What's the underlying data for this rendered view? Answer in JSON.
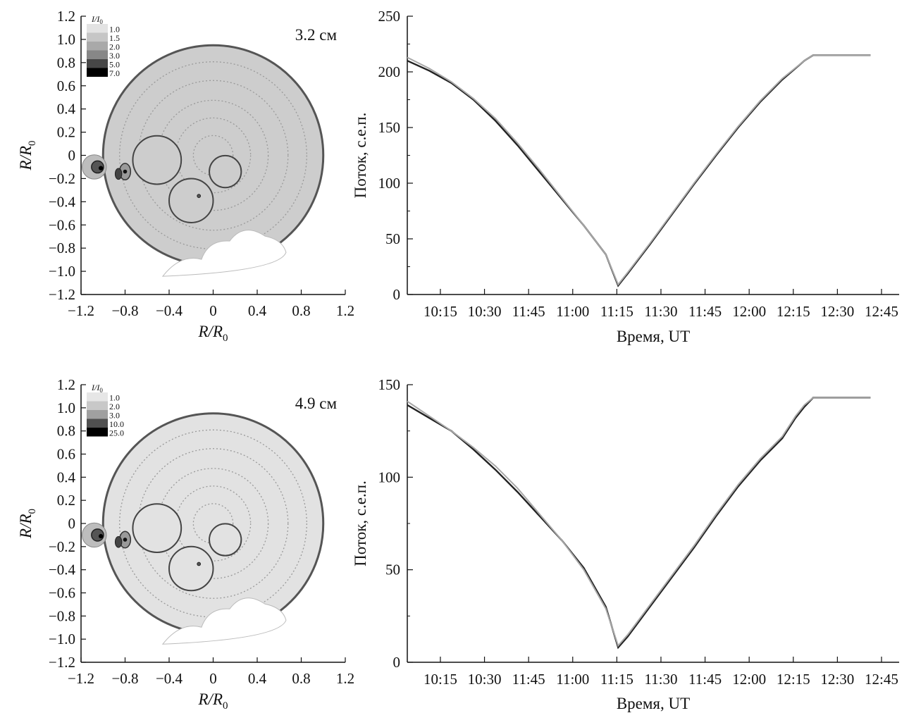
{
  "chart_data": [
    {
      "id": "map-top",
      "type": "contour-map",
      "label": "3.2 см",
      "xlabel": "R/R",
      "xlabel_sub": "0",
      "ylabel": "R/R",
      "ylabel_sub": "0",
      "xlim": [
        -1.2,
        1.2
      ],
      "ylim": [
        -1.2,
        1.2
      ],
      "x_ticks": [
        "−1.2",
        "−0.8",
        "−0.4",
        "0",
        "0.4",
        "0.8",
        "1.2"
      ],
      "y_ticks": [
        "1.2",
        "1.0",
        "0.8",
        "0.6",
        "0.4",
        "0.2",
        "0",
        "−0.2",
        "−0.4",
        "−0.6",
        "−0.8",
        "−1.0",
        "−1.2"
      ],
      "legend_title": "I/I",
      "legend_title_sub": "0",
      "legend_levels": [
        "1.0",
        "1.5",
        "2.0",
        "3.0",
        "5.0",
        "7.0"
      ],
      "legend_colors": [
        "#e3e3e3",
        "#c6c6c6",
        "#a9a9a9",
        "#878787",
        "#474747",
        "#000000"
      ],
      "disk_fill": "#cdcdcd"
    },
    {
      "id": "flux-top",
      "type": "line",
      "xlabel": "Время, UT",
      "ylabel": "Поток, с.е.п.",
      "ylim": [
        0,
        250
      ],
      "y_ticks": [
        "0",
        "50",
        "100",
        "150",
        "200",
        "250"
      ],
      "x_tick_labels": [
        "10:15",
        "10:30",
        "11:45",
        "11:00",
        "11:15",
        "11:30",
        "11:45",
        "12:00",
        "12:15",
        "12:30",
        "12:45"
      ],
      "series": [
        {
          "color": "#222222",
          "x": [
            0,
            0.5,
            1,
            1.5,
            2,
            2.5,
            3,
            3.5,
            4,
            4.5,
            4.78,
            5,
            5.5,
            6,
            6.5,
            7,
            7.5,
            8,
            8.5,
            9,
            9.2,
            9.5,
            10,
            10.5
          ],
          "y": [
            210,
            201,
            190,
            175,
            156,
            134,
            110,
            86,
            62,
            36,
            8,
            19,
            45,
            72,
            99,
            125,
            150,
            173,
            193,
            210,
            215,
            215,
            215,
            215
          ]
        },
        {
          "color": "#a8a8a8",
          "x": [
            0,
            0.5,
            1,
            1.5,
            2,
            2.5,
            3,
            3.5,
            4,
            4.5,
            4.78,
            5,
            5.5,
            6,
            6.5,
            7,
            7.5,
            8,
            8.5,
            9,
            9.2,
            9.5,
            10,
            10.5
          ],
          "y": [
            213,
            203,
            191,
            176,
            158,
            136,
            112,
            87,
            62,
            36,
            9,
            20,
            46,
            73,
            100,
            126,
            151,
            174,
            194,
            210,
            215,
            215,
            215,
            215
          ]
        }
      ]
    },
    {
      "id": "map-bottom",
      "type": "contour-map",
      "label": "4.9 см",
      "xlabel": "R/R",
      "xlabel_sub": "0",
      "ylabel": "R/R",
      "ylabel_sub": "0",
      "xlim": [
        -1.2,
        1.2
      ],
      "ylim": [
        -1.2,
        1.2
      ],
      "x_ticks": [
        "−1.2",
        "−0.8",
        "−0.4",
        "0",
        "0.4",
        "0.8",
        "1.2"
      ],
      "y_ticks": [
        "1.2",
        "1.0",
        "0.8",
        "0.6",
        "0.4",
        "0.2",
        "0",
        "−0.2",
        "−0.4",
        "−0.6",
        "−0.8",
        "−1.0",
        "−1.2"
      ],
      "legend_title": "I/I",
      "legend_title_sub": "0",
      "legend_levels": [
        "1.0",
        "2.0",
        "3.0",
        "10.0",
        "25.0"
      ],
      "legend_colors": [
        "#e6e6e6",
        "#c8c8c8",
        "#a0a0a0",
        "#505050",
        "#000000"
      ],
      "disk_fill": "#e2e2e2"
    },
    {
      "id": "flux-bottom",
      "type": "line",
      "xlabel": "Время, UT",
      "ylabel": "Поток, с.е.п.",
      "ylim": [
        0,
        150
      ],
      "y_ticks": [
        "0",
        "50",
        "100",
        "150"
      ],
      "x_tick_labels": [
        "10:15",
        "10:30",
        "11:45",
        "11:00",
        "11:15",
        "11:30",
        "11:45",
        "12:00",
        "12:15",
        "12:30",
        "12:45"
      ],
      "series": [
        {
          "color": "#222222",
          "x": [
            0,
            0.5,
            1,
            1.5,
            2,
            2.5,
            3,
            3.5,
            4,
            4.5,
            4.78,
            5,
            5.5,
            6,
            6.5,
            7,
            7.5,
            8,
            8.5,
            8.8,
            9,
            9.2,
            9.5,
            10,
            10.5
          ],
          "y": [
            139,
            132,
            125,
            115,
            104,
            92,
            79,
            66,
            51,
            30,
            8,
            14,
            30,
            46,
            62,
            79,
            95,
            109,
            121,
            132,
            138,
            143,
            143,
            143,
            143
          ]
        },
        {
          "color": "#a8a8a8",
          "x": [
            0,
            0.5,
            1,
            1.5,
            2,
            2.5,
            3,
            3.5,
            4,
            4.5,
            4.78,
            5,
            5.5,
            6,
            6.5,
            7,
            7.5,
            8,
            8.5,
            8.8,
            9,
            9.2,
            9.5,
            10,
            10.5
          ],
          "y": [
            141,
            133,
            125,
            116,
            106,
            94,
            80,
            66,
            50,
            29,
            9,
            15,
            31,
            47,
            63,
            80,
            96,
            110,
            122,
            133,
            139,
            143,
            143,
            143,
            143
          ]
        }
      ]
    }
  ]
}
